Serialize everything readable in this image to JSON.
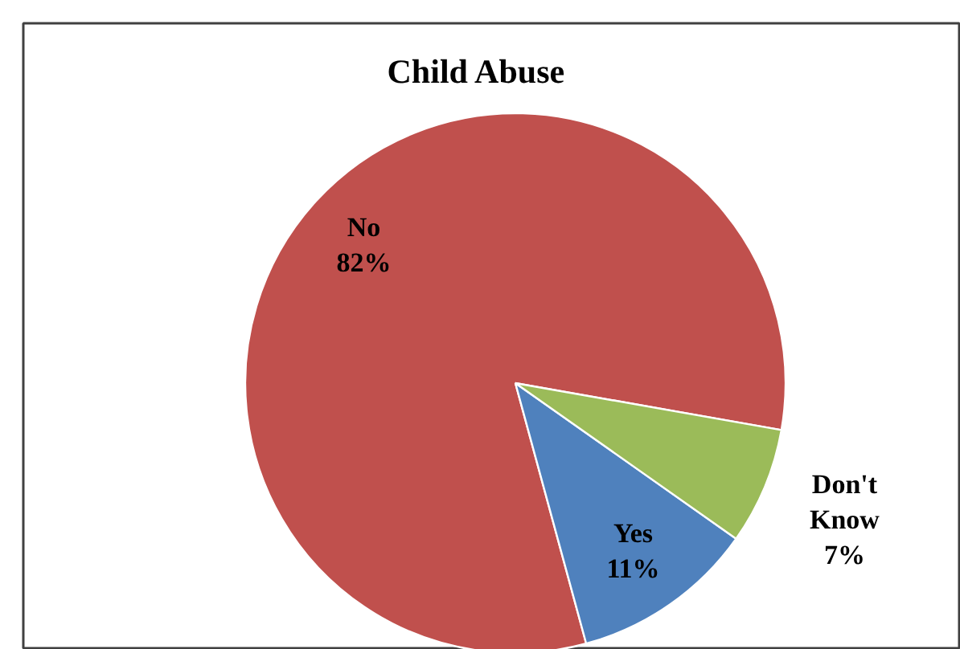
{
  "chart_data": {
    "type": "pie",
    "title": "Child Abuse",
    "categories": [
      "No",
      "Yes",
      "Don't Know"
    ],
    "values": [
      82,
      11,
      7
    ],
    "colors": [
      "#c0504d",
      "#4f81bd",
      "#9bbb59"
    ],
    "value_labels": [
      "82%",
      "11%",
      "7%"
    ]
  }
}
